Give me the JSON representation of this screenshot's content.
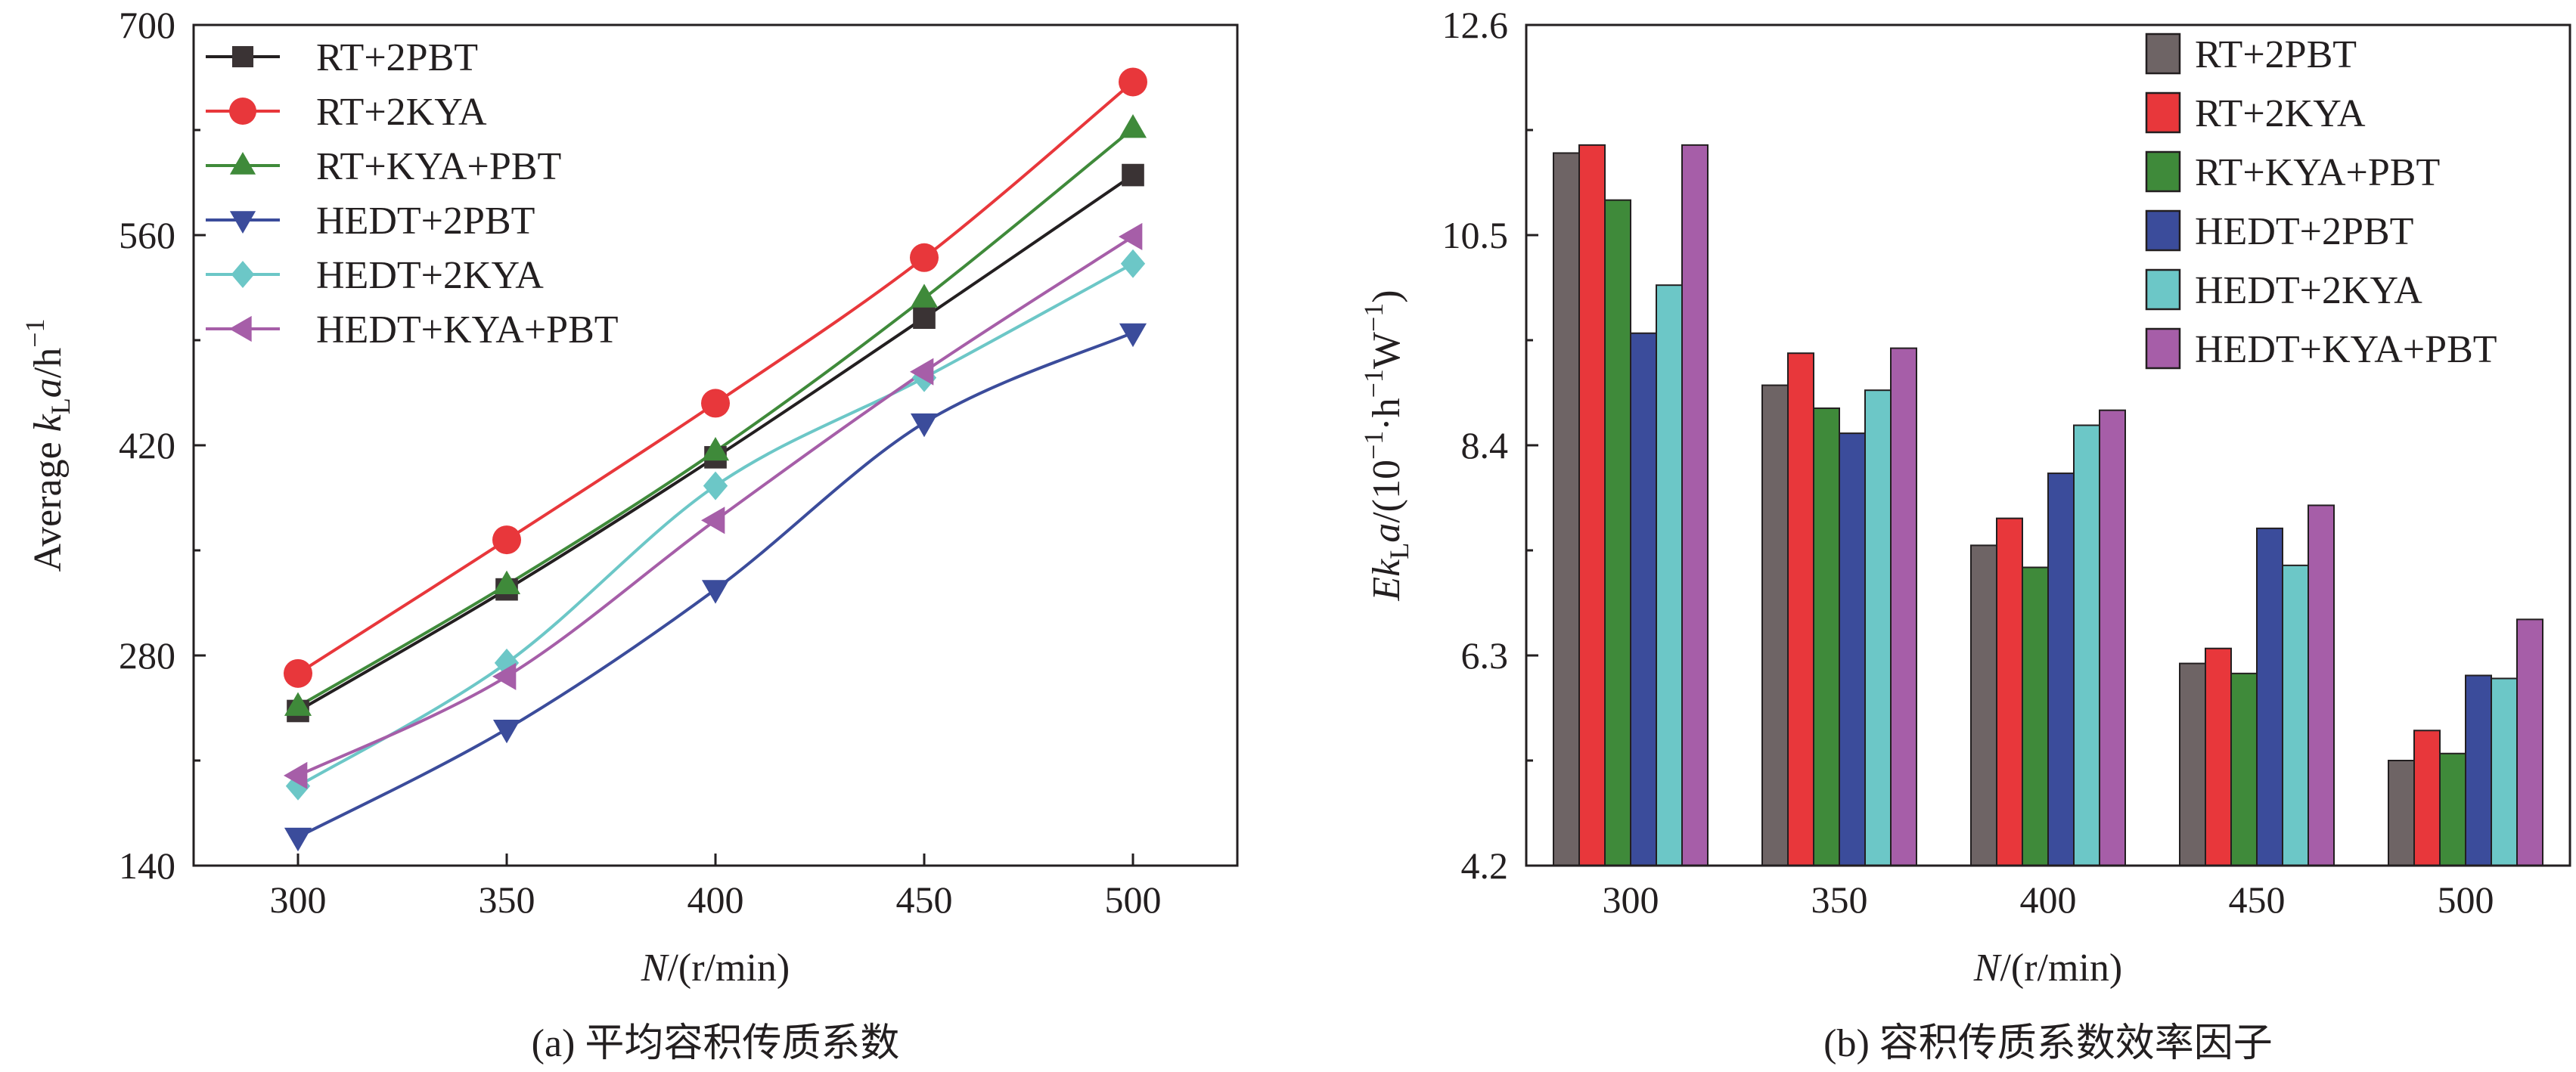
{
  "colors": {
    "RT+2PBT": "#6e6465",
    "RT+2KYA": "#e8373b",
    "RT+KYA+PBT": "#3f8a3a",
    "HEDT+2PBT": "#3b4c9b",
    "HEDT+2KYA": "#6cc7c7",
    "HEDT+KYA+PBT": "#a65ea8",
    "line_RT+2PBT": "#231f20",
    "marker_RT+2PBT": "#3a3334",
    "axis": "#231f20"
  },
  "markers": {
    "RT+2PBT": "square",
    "RT+2KYA": "circle",
    "RT+KYA+PBT": "triangle-up",
    "HEDT+2PBT": "triangle-down",
    "HEDT+2KYA": "diamond",
    "HEDT+KYA+PBT": "triangle-left"
  },
  "chart_data": [
    {
      "type": "line",
      "caption": "(a) 平均容积传质系数",
      "xlabel_italic": "N",
      "xlabel_rest": "/(r/min)",
      "ylabel_pre": "Average ",
      "ylabel_k": "k",
      "ylabel_sub": "L",
      "ylabel_a": "a",
      "ylabel_unit": "/h",
      "ylabel_sup": "−1",
      "xlim": [
        275,
        525
      ],
      "ylim": [
        140,
        700
      ],
      "xticks": [
        "300",
        "350",
        "400",
        "450",
        "500"
      ],
      "yticks": [
        "140",
        "280",
        "420",
        "560",
        "700"
      ],
      "x": [
        300,
        350,
        400,
        450,
        500
      ],
      "series": [
        {
          "name": "RT+2PBT",
          "values": [
            243,
            324,
            412,
            505,
            600
          ]
        },
        {
          "name": "RT+2KYA",
          "values": [
            268,
            357,
            448,
            545,
            662
          ]
        },
        {
          "name": "RT+KYA+PBT",
          "values": [
            246,
            327,
            416,
            518,
            631
          ]
        },
        {
          "name": "HEDT+2PBT",
          "values": [
            159,
            231,
            324,
            435,
            495
          ]
        },
        {
          "name": "HEDT+2KYA",
          "values": [
            193,
            275,
            393,
            465,
            541
          ]
        },
        {
          "name": "HEDT+KYA+PBT",
          "values": [
            200,
            266,
            370,
            469,
            559
          ]
        }
      ],
      "legend_loc": "top-left"
    },
    {
      "type": "bar",
      "caption": "(b) 容积传质系数效率因子",
      "xlabel_italic": "N",
      "xlabel_rest": "/(r/min)",
      "ylabel_E": "Ek",
      "ylabel_sub": "L",
      "ylabel_a": "a",
      "ylabel_rest1": "/(10",
      "ylabel_sup1": "−1",
      "ylabel_rest2": "·h",
      "ylabel_sup2": "−1",
      "ylabel_rest3": "W",
      "ylabel_sup3": "−1",
      "ylabel_rest4": ")",
      "ylim": [
        4.2,
        12.6
      ],
      "categories": [
        "300",
        "350",
        "400",
        "450",
        "500"
      ],
      "yticks": [
        "4.2",
        "6.3",
        "8.4",
        "10.5",
        "12.6"
      ],
      "series": [
        {
          "name": "RT+2PBT",
          "values": [
            11.32,
            9.0,
            7.4,
            6.22,
            5.25
          ]
        },
        {
          "name": "RT+2KYA",
          "values": [
            11.4,
            9.32,
            7.67,
            6.37,
            5.55
          ]
        },
        {
          "name": "RT+KYA+PBT",
          "values": [
            10.85,
            8.77,
            7.18,
            6.12,
            5.32
          ]
        },
        {
          "name": "HEDT+2PBT",
          "values": [
            9.52,
            8.52,
            8.12,
            7.57,
            6.1
          ]
        },
        {
          "name": "HEDT+2KYA",
          "values": [
            10.0,
            8.95,
            8.6,
            7.2,
            6.07
          ]
        },
        {
          "name": "HEDT+KYA+PBT",
          "values": [
            11.4,
            9.37,
            8.75,
            7.8,
            6.66
          ]
        }
      ],
      "legend_loc": "top-right"
    }
  ]
}
